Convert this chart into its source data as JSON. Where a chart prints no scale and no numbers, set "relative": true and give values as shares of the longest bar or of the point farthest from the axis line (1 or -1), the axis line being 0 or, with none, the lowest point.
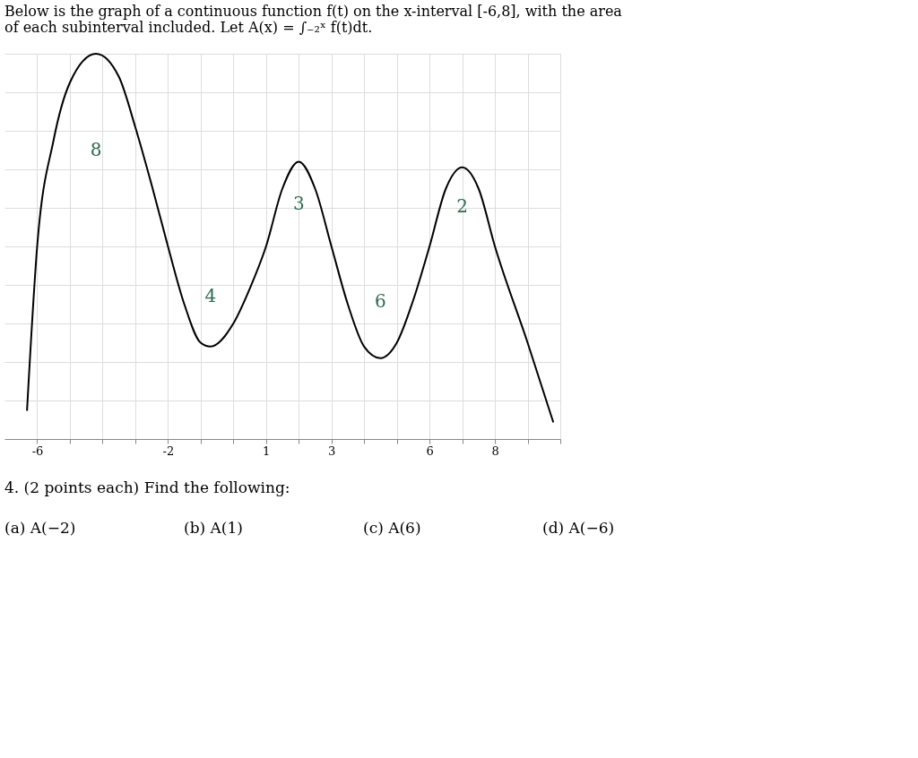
{
  "chart_data": {
    "type": "line",
    "title": "Below is the graph of a continuous function f(t) on the x-interval [-6,8], with the area of each subinterval included. Let A(x) = ∫₋₂ˣ f(t)dt.",
    "relative": true,
    "x": [
      -6.31,
      -6,
      -5.5,
      -5,
      -4.2,
      -3.5,
      -3,
      -2.5,
      -2,
      -1.5,
      -1,
      -0.7,
      0,
      0.5,
      1,
      1.5,
      2,
      2.5,
      3,
      3.5,
      4,
      4.5,
      5,
      5.5,
      6,
      6.5,
      7,
      7.5,
      8,
      9,
      9.78
    ],
    "values": [
      -0.85,
      0,
      0.55,
      0.85,
      1,
      0.88,
      0.62,
      0.32,
      0,
      -0.3,
      -0.5,
      -0.52,
      -0.4,
      -0.22,
      0,
      0.3,
      0.44,
      0.3,
      0,
      -0.3,
      -0.52,
      -0.58,
      -0.5,
      -0.28,
      0,
      0.3,
      0.41,
      0.3,
      0,
      -0.5,
      -0.91
    ],
    "color": "#000000",
    "marker": "none",
    "line_style": "solid",
    "grid": true,
    "xlim": [
      -7,
      10
    ],
    "xticks": [
      -6,
      {
        "value": -5,
        "label": null
      },
      {
        "value": -4,
        "label": null
      },
      {
        "value": -3,
        "label": null
      },
      -2,
      {
        "value": -1,
        "label": null
      },
      {
        "value": 0,
        "label": null
      },
      1,
      {
        "value": 2,
        "label": null
      },
      3,
      {
        "value": 4,
        "label": null
      },
      {
        "value": 5,
        "label": null
      },
      6,
      {
        "value": 7,
        "label": null
      },
      8,
      {
        "value": 9,
        "label": null
      },
      {
        "value": 10,
        "label": null
      }
    ],
    "annotations": [
      "8",
      "4",
      "3",
      "6",
      "2",
      "4. (2 points each) Find the following:",
      "(a) A(−2)",
      "(b) A(1)",
      "(c) A(6)",
      "(d) A(−6)"
    ]
  }
}
